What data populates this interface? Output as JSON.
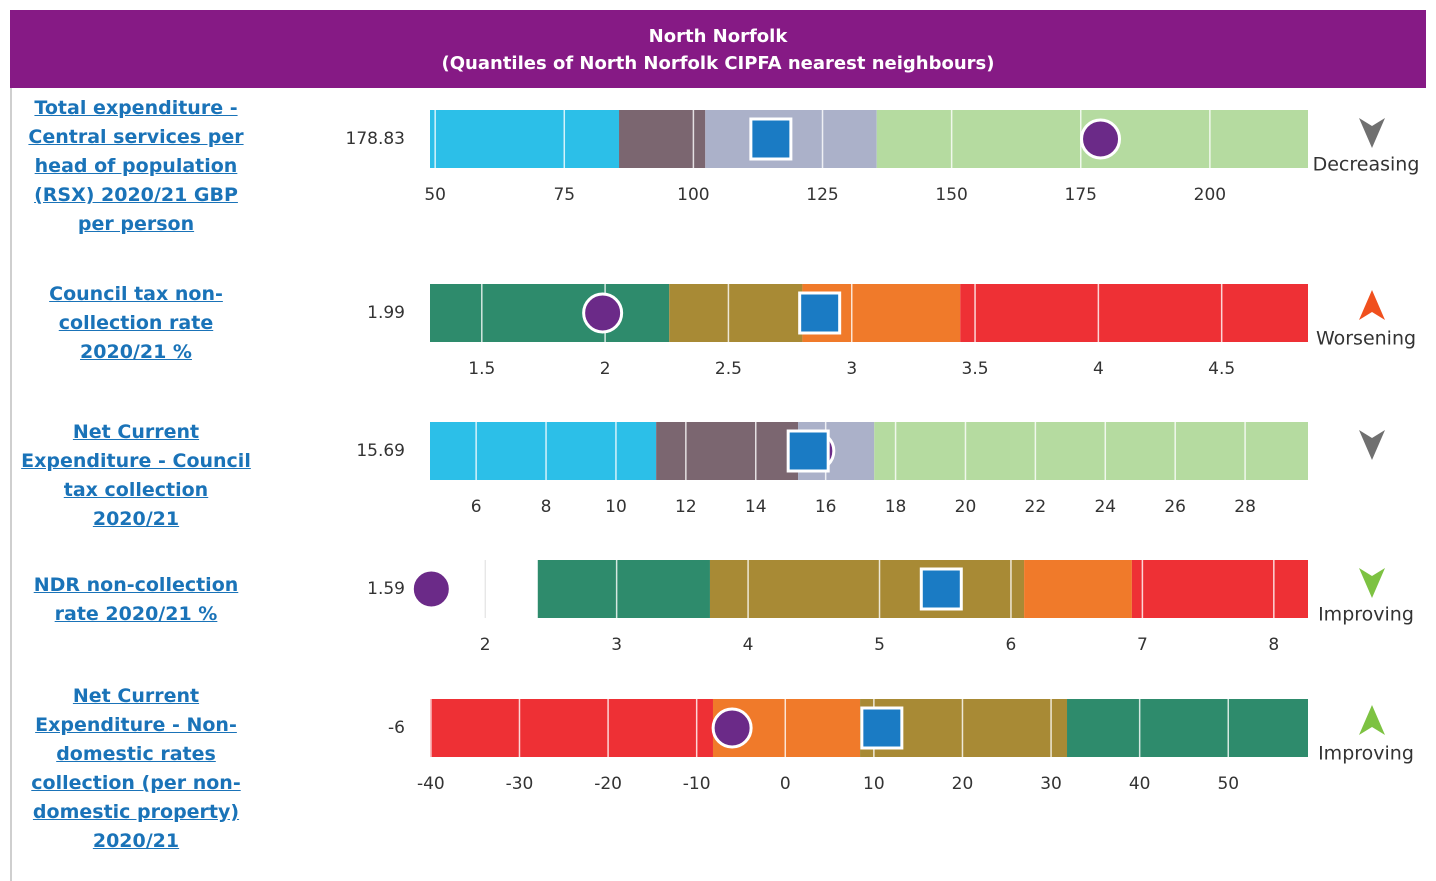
{
  "header": {
    "title": "North Norfolk",
    "subtitle": "(Quantiles of North Norfolk CIPFA nearest neighbours)"
  },
  "chart_data": [
    {
      "type": "bullet",
      "title": "Total expenditure - Central services per head of population (RSX) 2020/21 GBP per person",
      "value": 178.83,
      "comparator": 115.0,
      "xlim": [
        49,
        219
      ],
      "xticks": [
        50,
        75,
        100,
        125,
        150,
        175,
        200
      ],
      "bands": [
        {
          "from": 49,
          "to": 85.6,
          "color": "#2cbfe8"
        },
        {
          "from": 85.6,
          "to": 102.3,
          "color": "#7b6670"
        },
        {
          "from": 102.3,
          "to": 135.5,
          "color": "#abb1c9"
        },
        {
          "from": 135.5,
          "to": 219,
          "color": "#b5dba0"
        }
      ],
      "trend": {
        "direction": "down",
        "color": "#707070",
        "label": "Decreasing"
      }
    },
    {
      "type": "bullet",
      "title": "Council tax non-collection rate 2020/21 %",
      "value": 1.99,
      "comparator": 2.87,
      "xlim": [
        1.29,
        4.85
      ],
      "xticks": [
        1.5,
        2,
        2.5,
        3,
        3.5,
        4,
        4.5
      ],
      "bands": [
        {
          "from": 1.29,
          "to": 2.26,
          "color": "#2e8b6c"
        },
        {
          "from": 2.26,
          "to": 2.8,
          "color": "#a88a35"
        },
        {
          "from": 2.8,
          "to": 3.44,
          "color": "#f07a2a"
        },
        {
          "from": 3.44,
          "to": 4.85,
          "color": "#ee3035"
        }
      ],
      "trend": {
        "direction": "up",
        "color": "#f0501e",
        "label": "Worsening"
      }
    },
    {
      "type": "bullet",
      "title": "Net Current Expenditure - Council tax collection 2020/21",
      "value": 15.69,
      "comparator": 15.5,
      "xlim": [
        4.68,
        29.8
      ],
      "xticks": [
        6,
        8,
        10,
        12,
        14,
        16,
        18,
        20,
        22,
        24,
        26,
        28
      ],
      "bands": [
        {
          "from": 4.68,
          "to": 11.15,
          "color": "#2cbfe8"
        },
        {
          "from": 11.15,
          "to": 15.21,
          "color": "#7b6670"
        },
        {
          "from": 15.21,
          "to": 17.39,
          "color": "#abb1c9"
        },
        {
          "from": 17.39,
          "to": 29.8,
          "color": "#b5dba0"
        }
      ],
      "trend": {
        "direction": "down",
        "color": "#707070"
      }
    },
    {
      "type": "bullet",
      "title": "NDR non-collection rate 2020/21 %",
      "value": 1.59,
      "comparator": 5.47,
      "xlim": [
        1.58,
        8.26
      ],
      "xticks": [
        2,
        3,
        4,
        5,
        6,
        7,
        8
      ],
      "bands": [
        {
          "from": 2.4,
          "to": 3.71,
          "color": "#2e8b6c"
        },
        {
          "from": 3.71,
          "to": 6.1,
          "color": "#a88a35"
        },
        {
          "from": 6.1,
          "to": 6.92,
          "color": "#f07a2a"
        },
        {
          "from": 6.92,
          "to": 8.26,
          "color": "#ee3035"
        }
      ],
      "trend": {
        "direction": "down",
        "color": "#7dc242",
        "label": "Improving"
      }
    },
    {
      "type": "bullet",
      "title": "Net Current Expenditure - Non-domestic rates collection (per non-domestic property) 2020/21",
      "value": -6,
      "comparator": 10.9,
      "xlim": [
        -40.1,
        59
      ],
      "xticks": [
        -40,
        -30,
        -20,
        -10,
        0,
        10,
        20,
        30,
        40,
        50
      ],
      "bands": [
        {
          "from": -40.1,
          "to": -8.16,
          "color": "#ee3035"
        },
        {
          "from": -8.16,
          "to": 8.44,
          "color": "#f07a2a"
        },
        {
          "from": 8.44,
          "to": 31.8,
          "color": "#a88a35"
        },
        {
          "from": 31.8,
          "to": 59,
          "color": "#2e8b6c"
        }
      ],
      "trend": {
        "direction": "up",
        "color": "#7dc242",
        "label": "Improving"
      }
    }
  ]
}
